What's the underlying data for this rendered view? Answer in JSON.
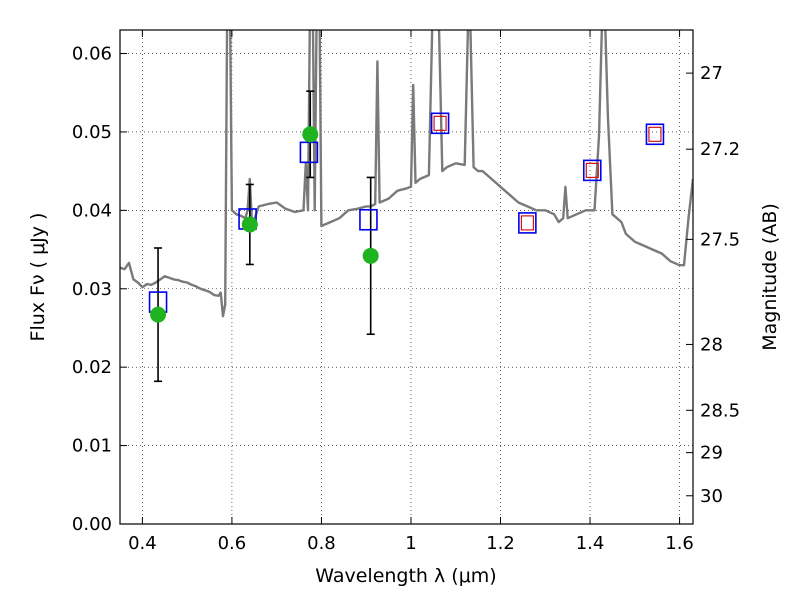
{
  "chart_data": {
    "type": "scatter",
    "title": "",
    "xlabel": "Wavelength  λ (μm)",
    "ylabel": "Flux  Fν  ( μJy )",
    "y2label": "Magnitude (AB)",
    "xlim": [
      0.35,
      1.63
    ],
    "ylim": [
      0.0,
      0.063
    ],
    "grid": true,
    "x_ticks": [
      0.4,
      0.6,
      0.8,
      1.0,
      1.2,
      1.4,
      1.6
    ],
    "x_tick_labels": [
      "0.4",
      "0.6",
      "0.8",
      "1",
      "1.2",
      "1.4",
      "1.6"
    ],
    "y_ticks": [
      0.0,
      0.01,
      0.02,
      0.03,
      0.04,
      0.05,
      0.06
    ],
    "y_tick_labels": [
      "0.00",
      "0.01",
      "0.02",
      "0.03",
      "0.04",
      "0.05",
      "0.06"
    ],
    "y2_ticks": [
      {
        "label": "27",
        "flux": 0.0575
      },
      {
        "label": "27.2",
        "flux": 0.0478
      },
      {
        "label": "27.5",
        "flux": 0.0363
      },
      {
        "label": "28",
        "flux": 0.0229
      },
      {
        "label": "28.5",
        "flux": 0.0145
      },
      {
        "label": "29",
        "flux": 0.0091
      },
      {
        "label": "30",
        "flux": 0.0036
      }
    ],
    "colors": {
      "model": "#7a7a7a",
      "measured": "#1fb41f",
      "model_band": "#0000ee",
      "inner_box": "#cc0000",
      "error": "#000000"
    },
    "series": [
      {
        "kind": "spectrum",
        "points": [
          [
            0.35,
            0.0327
          ],
          [
            0.36,
            0.0325
          ],
          [
            0.37,
            0.0333
          ],
          [
            0.38,
            0.0312
          ],
          [
            0.39,
            0.0308
          ],
          [
            0.4,
            0.0302
          ],
          [
            0.41,
            0.0306
          ],
          [
            0.42,
            0.0305
          ],
          [
            0.43,
            0.0308
          ],
          [
            0.44,
            0.0312
          ],
          [
            0.45,
            0.0316
          ],
          [
            0.46,
            0.0314
          ],
          [
            0.47,
            0.0312
          ],
          [
            0.48,
            0.0311
          ],
          [
            0.49,
            0.0309
          ],
          [
            0.5,
            0.0308
          ],
          [
            0.51,
            0.0305
          ],
          [
            0.52,
            0.0303
          ],
          [
            0.53,
            0.03
          ],
          [
            0.54,
            0.0298
          ],
          [
            0.55,
            0.0296
          ],
          [
            0.56,
            0.0292
          ],
          [
            0.57,
            0.0291
          ],
          [
            0.575,
            0.0295
          ],
          [
            0.58,
            0.0265
          ],
          [
            0.585,
            0.028
          ],
          [
            0.59,
            0.07
          ],
          [
            0.595,
            0.07
          ],
          [
            0.6,
            0.04
          ],
          [
            0.61,
            0.0395
          ],
          [
            0.62,
            0.0393
          ],
          [
            0.63,
            0.039
          ],
          [
            0.635,
            0.04
          ],
          [
            0.64,
            0.044
          ],
          [
            0.645,
            0.038
          ],
          [
            0.66,
            0.0405
          ],
          [
            0.68,
            0.0408
          ],
          [
            0.7,
            0.041
          ],
          [
            0.72,
            0.0402
          ],
          [
            0.74,
            0.0398
          ],
          [
            0.76,
            0.04
          ],
          [
            0.765,
            0.046
          ],
          [
            0.77,
            0.04
          ],
          [
            0.775,
            0.07
          ],
          [
            0.78,
            0.07
          ],
          [
            0.785,
            0.04
          ],
          [
            0.79,
            0.07
          ],
          [
            0.795,
            0.07
          ],
          [
            0.8,
            0.038
          ],
          [
            0.82,
            0.0385
          ],
          [
            0.84,
            0.039
          ],
          [
            0.86,
            0.04
          ],
          [
            0.88,
            0.0402
          ],
          [
            0.9,
            0.0405
          ],
          [
            0.91,
            0.0405
          ],
          [
            0.92,
            0.0408
          ],
          [
            0.925,
            0.059
          ],
          [
            0.93,
            0.041
          ],
          [
            0.95,
            0.0415
          ],
          [
            0.97,
            0.0425
          ],
          [
            0.99,
            0.0428
          ],
          [
            1.0,
            0.043
          ],
          [
            1.005,
            0.056
          ],
          [
            1.01,
            0.0435
          ],
          [
            1.02,
            0.044
          ],
          [
            1.04,
            0.0445
          ],
          [
            1.05,
            0.07
          ],
          [
            1.06,
            0.07
          ],
          [
            1.07,
            0.045
          ],
          [
            1.08,
            0.0455
          ],
          [
            1.1,
            0.046
          ],
          [
            1.12,
            0.0458
          ],
          [
            1.13,
            0.07
          ],
          [
            1.14,
            0.0455
          ],
          [
            1.15,
            0.045
          ],
          [
            1.16,
            0.045
          ],
          [
            1.18,
            0.044
          ],
          [
            1.2,
            0.043
          ],
          [
            1.22,
            0.042
          ],
          [
            1.24,
            0.041
          ],
          [
            1.26,
            0.0405
          ],
          [
            1.28,
            0.04
          ],
          [
            1.3,
            0.04
          ],
          [
            1.32,
            0.0395
          ],
          [
            1.33,
            0.0385
          ],
          [
            1.34,
            0.039
          ],
          [
            1.345,
            0.043
          ],
          [
            1.35,
            0.039
          ],
          [
            1.37,
            0.0395
          ],
          [
            1.39,
            0.04
          ],
          [
            1.41,
            0.04
          ],
          [
            1.42,
            0.0495
          ],
          [
            1.43,
            0.071
          ],
          [
            1.44,
            0.052
          ],
          [
            1.45,
            0.0395
          ],
          [
            1.46,
            0.039
          ],
          [
            1.47,
            0.0385
          ],
          [
            1.48,
            0.037
          ],
          [
            1.5,
            0.036
          ],
          [
            1.52,
            0.0355
          ],
          [
            1.54,
            0.035
          ],
          [
            1.56,
            0.0345
          ],
          [
            1.58,
            0.0335
          ],
          [
            1.6,
            0.033
          ],
          [
            1.61,
            0.033
          ],
          [
            1.62,
            0.039
          ],
          [
            1.63,
            0.044
          ]
        ]
      },
      {
        "kind": "measured",
        "points": [
          {
            "x": 0.435,
            "y": 0.0267,
            "err": 0.0085
          },
          {
            "x": 0.64,
            "y": 0.0382,
            "err": 0.0051
          },
          {
            "x": 0.775,
            "y": 0.0497,
            "err": 0.0055
          },
          {
            "x": 0.91,
            "y": 0.0342,
            "err": 0.01
          }
        ]
      },
      {
        "kind": "model_band",
        "points": [
          {
            "x": 0.435,
            "y": 0.0283
          },
          {
            "x": 0.635,
            "y": 0.0389
          },
          {
            "x": 0.772,
            "y": 0.0474
          },
          {
            "x": 0.905,
            "y": 0.0388
          },
          {
            "x": 1.065,
            "y": 0.0511
          },
          {
            "x": 1.26,
            "y": 0.0384
          },
          {
            "x": 1.405,
            "y": 0.0451
          },
          {
            "x": 1.545,
            "y": 0.0497
          }
        ]
      },
      {
        "kind": "inner_box",
        "points": [
          {
            "x": 1.065,
            "y": 0.0511
          },
          {
            "x": 1.26,
            "y": 0.0384
          },
          {
            "x": 1.405,
            "y": 0.0451
          },
          {
            "x": 1.545,
            "y": 0.0497
          }
        ]
      }
    ]
  }
}
